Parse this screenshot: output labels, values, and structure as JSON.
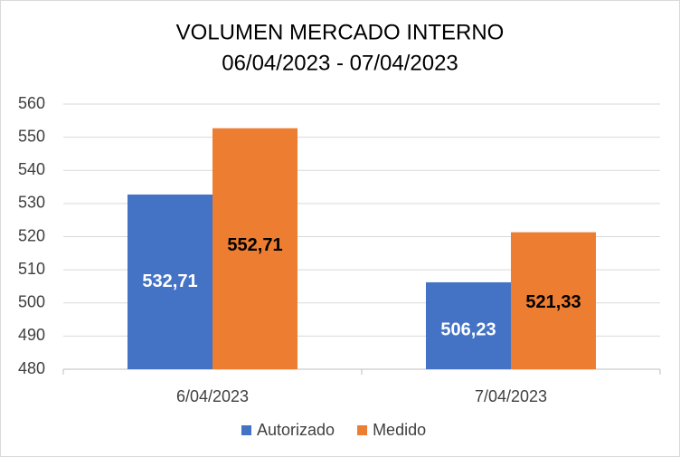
{
  "chart_data": {
    "type": "bar",
    "title": "VOLUMEN MERCADO INTERNO",
    "subtitle": "06/04/2023 - 07/04/2023",
    "categories": [
      "6/04/2023",
      "7/04/2023"
    ],
    "series": [
      {
        "name": "Autorizado",
        "color": "#4472c4",
        "values": [
          532.71,
          506.23
        ],
        "value_labels": [
          "532,71",
          "506,23"
        ]
      },
      {
        "name": "Medido",
        "color": "#ed7d31",
        "values": [
          552.71,
          521.33
        ],
        "value_labels": [
          "552,71",
          "521,33"
        ]
      }
    ],
    "ylim": [
      480,
      560
    ],
    "yticks": [
      480,
      490,
      500,
      510,
      520,
      530,
      540,
      550,
      560
    ],
    "grid": true,
    "legend": "bottom"
  }
}
